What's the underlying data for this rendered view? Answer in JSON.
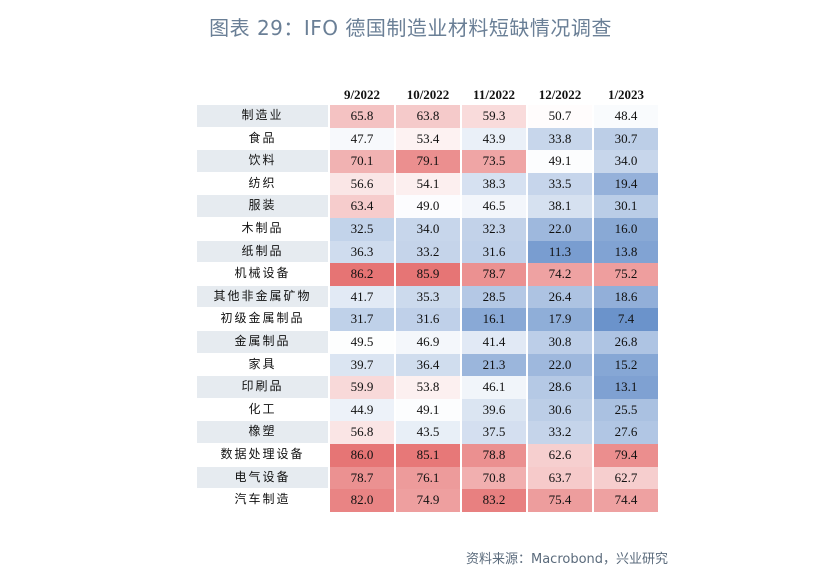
{
  "title": "图表 29：IFO 德国制造业材料短缺情况调查",
  "source": "资料来源：Macrobond，兴业研究",
  "chart_data": {
    "type": "heatmap",
    "columns": [
      "9/2022",
      "10/2022",
      "11/2022",
      "12/2022",
      "1/2023"
    ],
    "rows": [
      {
        "label": "制造业",
        "values": [
          "65.8",
          "63.8",
          "59.3",
          "50.7",
          "48.4"
        ]
      },
      {
        "label": "食品",
        "values": [
          "47.7",
          "53.4",
          "43.9",
          "33.8",
          "30.7"
        ]
      },
      {
        "label": "饮料",
        "values": [
          "70.1",
          "79.1",
          "73.5",
          "49.1",
          "34.0"
        ]
      },
      {
        "label": "纺织",
        "values": [
          "56.6",
          "54.1",
          "38.3",
          "33.5",
          "19.4"
        ]
      },
      {
        "label": "服装",
        "values": [
          "63.4",
          "49.0",
          "46.5",
          "38.1",
          "30.1"
        ]
      },
      {
        "label": "木制品",
        "values": [
          "32.5",
          "34.0",
          "32.3",
          "22.0",
          "16.0"
        ]
      },
      {
        "label": "纸制品",
        "values": [
          "36.3",
          "33.2",
          "31.6",
          "11.3",
          "13.8"
        ]
      },
      {
        "label": "机械设备",
        "values": [
          "86.2",
          "85.9",
          "78.7",
          "74.2",
          "75.2"
        ]
      },
      {
        "label": "其他非金属矿物",
        "values": [
          "41.7",
          "35.3",
          "28.5",
          "26.4",
          "18.6"
        ]
      },
      {
        "label": "初级金属制品",
        "values": [
          "31.7",
          "31.6",
          "16.1",
          "17.9",
          "7.4"
        ]
      },
      {
        "label": "金属制品",
        "values": [
          "49.5",
          "46.9",
          "41.4",
          "30.8",
          "26.8"
        ]
      },
      {
        "label": "家具",
        "values": [
          "39.7",
          "36.4",
          "21.3",
          "22.0",
          "15.2"
        ]
      },
      {
        "label": "印刷品",
        "values": [
          "59.9",
          "53.8",
          "46.1",
          "28.6",
          "13.1"
        ]
      },
      {
        "label": "化工",
        "values": [
          "44.9",
          "49.1",
          "39.6",
          "30.6",
          "25.5"
        ]
      },
      {
        "label": "橡塑",
        "values": [
          "56.8",
          "43.5",
          "37.5",
          "33.2",
          "27.6"
        ]
      },
      {
        "label": "数据处理设备",
        "values": [
          "86.0",
          "85.1",
          "78.8",
          "62.6",
          "79.4"
        ]
      },
      {
        "label": "电气设备",
        "values": [
          "78.7",
          "76.1",
          "70.8",
          "63.7",
          "62.7"
        ]
      },
      {
        "label": "汽车制造",
        "values": [
          "82.0",
          "74.9",
          "83.2",
          "75.4",
          "74.4"
        ]
      }
    ],
    "color_scale": {
      "low": "#6b93cb",
      "mid": "#ffffff",
      "high": "#e67474",
      "min": 7.4,
      "mid_value": 50,
      "max": 86.2
    }
  }
}
